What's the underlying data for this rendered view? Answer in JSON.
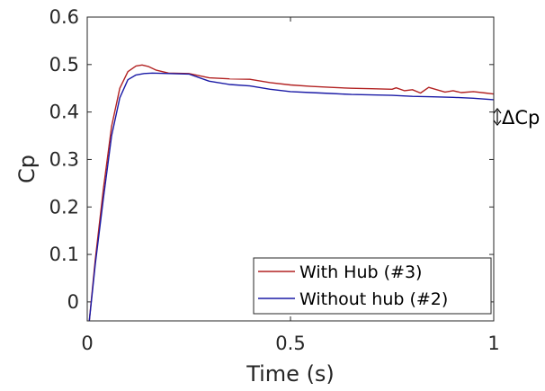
{
  "chart_data": {
    "type": "line",
    "xlabel": "Time (s)",
    "ylabel": "Cp",
    "xlim": [
      0,
      1
    ],
    "ylim": [
      -0.04,
      0.6
    ],
    "xticks": [
      0,
      0.5,
      1
    ],
    "xtick_labels": [
      "0",
      "0.5",
      "1"
    ],
    "yticks": [
      0,
      0.1,
      0.2,
      0.3,
      0.4,
      0.5,
      0.6
    ],
    "ytick_labels": [
      "0",
      "0.1",
      "0.2",
      "0.3",
      "0.4",
      "0.5",
      "0.6"
    ],
    "grid": false,
    "legend_position": "bottom-right",
    "annotation": "ΔCp",
    "series": [
      {
        "name": "With Hub (#3)",
        "color": "#b22222",
        "x": [
          0.005,
          0.02,
          0.04,
          0.06,
          0.08,
          0.1,
          0.12,
          0.135,
          0.15,
          0.17,
          0.2,
          0.25,
          0.3,
          0.35,
          0.4,
          0.45,
          0.5,
          0.55,
          0.6,
          0.65,
          0.7,
          0.75,
          0.76,
          0.78,
          0.8,
          0.82,
          0.84,
          0.86,
          0.88,
          0.9,
          0.92,
          0.95,
          0.98,
          1.0
        ],
        "y": [
          -0.04,
          0.09,
          0.24,
          0.37,
          0.45,
          0.485,
          0.497,
          0.499,
          0.496,
          0.488,
          0.482,
          0.481,
          0.472,
          0.47,
          0.469,
          0.462,
          0.457,
          0.454,
          0.452,
          0.45,
          0.449,
          0.448,
          0.451,
          0.445,
          0.447,
          0.44,
          0.452,
          0.447,
          0.442,
          0.445,
          0.441,
          0.443,
          0.44,
          0.438
        ]
      },
      {
        "name": "Without hub (#2)",
        "color": "#1a1aa6",
        "x": [
          0.005,
          0.02,
          0.04,
          0.06,
          0.08,
          0.1,
          0.12,
          0.14,
          0.16,
          0.2,
          0.25,
          0.3,
          0.35,
          0.4,
          0.45,
          0.5,
          0.55,
          0.6,
          0.65,
          0.7,
          0.75,
          0.8,
          0.85,
          0.9,
          0.95,
          1.0
        ],
        "y": [
          -0.04,
          0.08,
          0.22,
          0.35,
          0.43,
          0.468,
          0.478,
          0.481,
          0.482,
          0.481,
          0.48,
          0.465,
          0.458,
          0.455,
          0.448,
          0.443,
          0.441,
          0.439,
          0.437,
          0.436,
          0.435,
          0.433,
          0.432,
          0.431,
          0.429,
          0.426
        ]
      }
    ]
  }
}
